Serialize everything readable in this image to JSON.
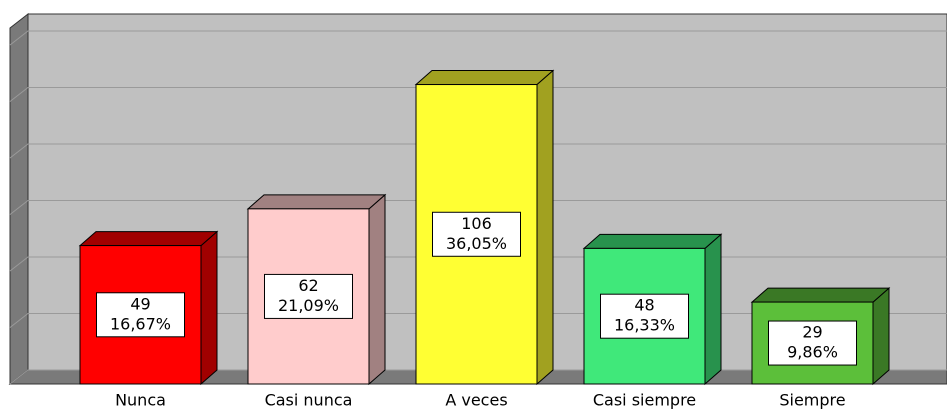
{
  "chart_data": {
    "type": "bar3d",
    "categories": [
      "Nunca",
      "Casi nunca",
      "A veces",
      "Casi siempre",
      "Siempre"
    ],
    "values": [
      49,
      62,
      106,
      48,
      29
    ],
    "share_labels": [
      "16,67%",
      "21,09%",
      "36,05%",
      "16,33%",
      "9,86%"
    ],
    "colors": [
      "#ff0000",
      "#ffcccc",
      "#ffff33",
      "#40e87a",
      "#5cbf3a"
    ],
    "ylim": [
      0,
      120
    ],
    "yticks": [
      0,
      20,
      40,
      60,
      80,
      100,
      120
    ],
    "grid": true
  }
}
